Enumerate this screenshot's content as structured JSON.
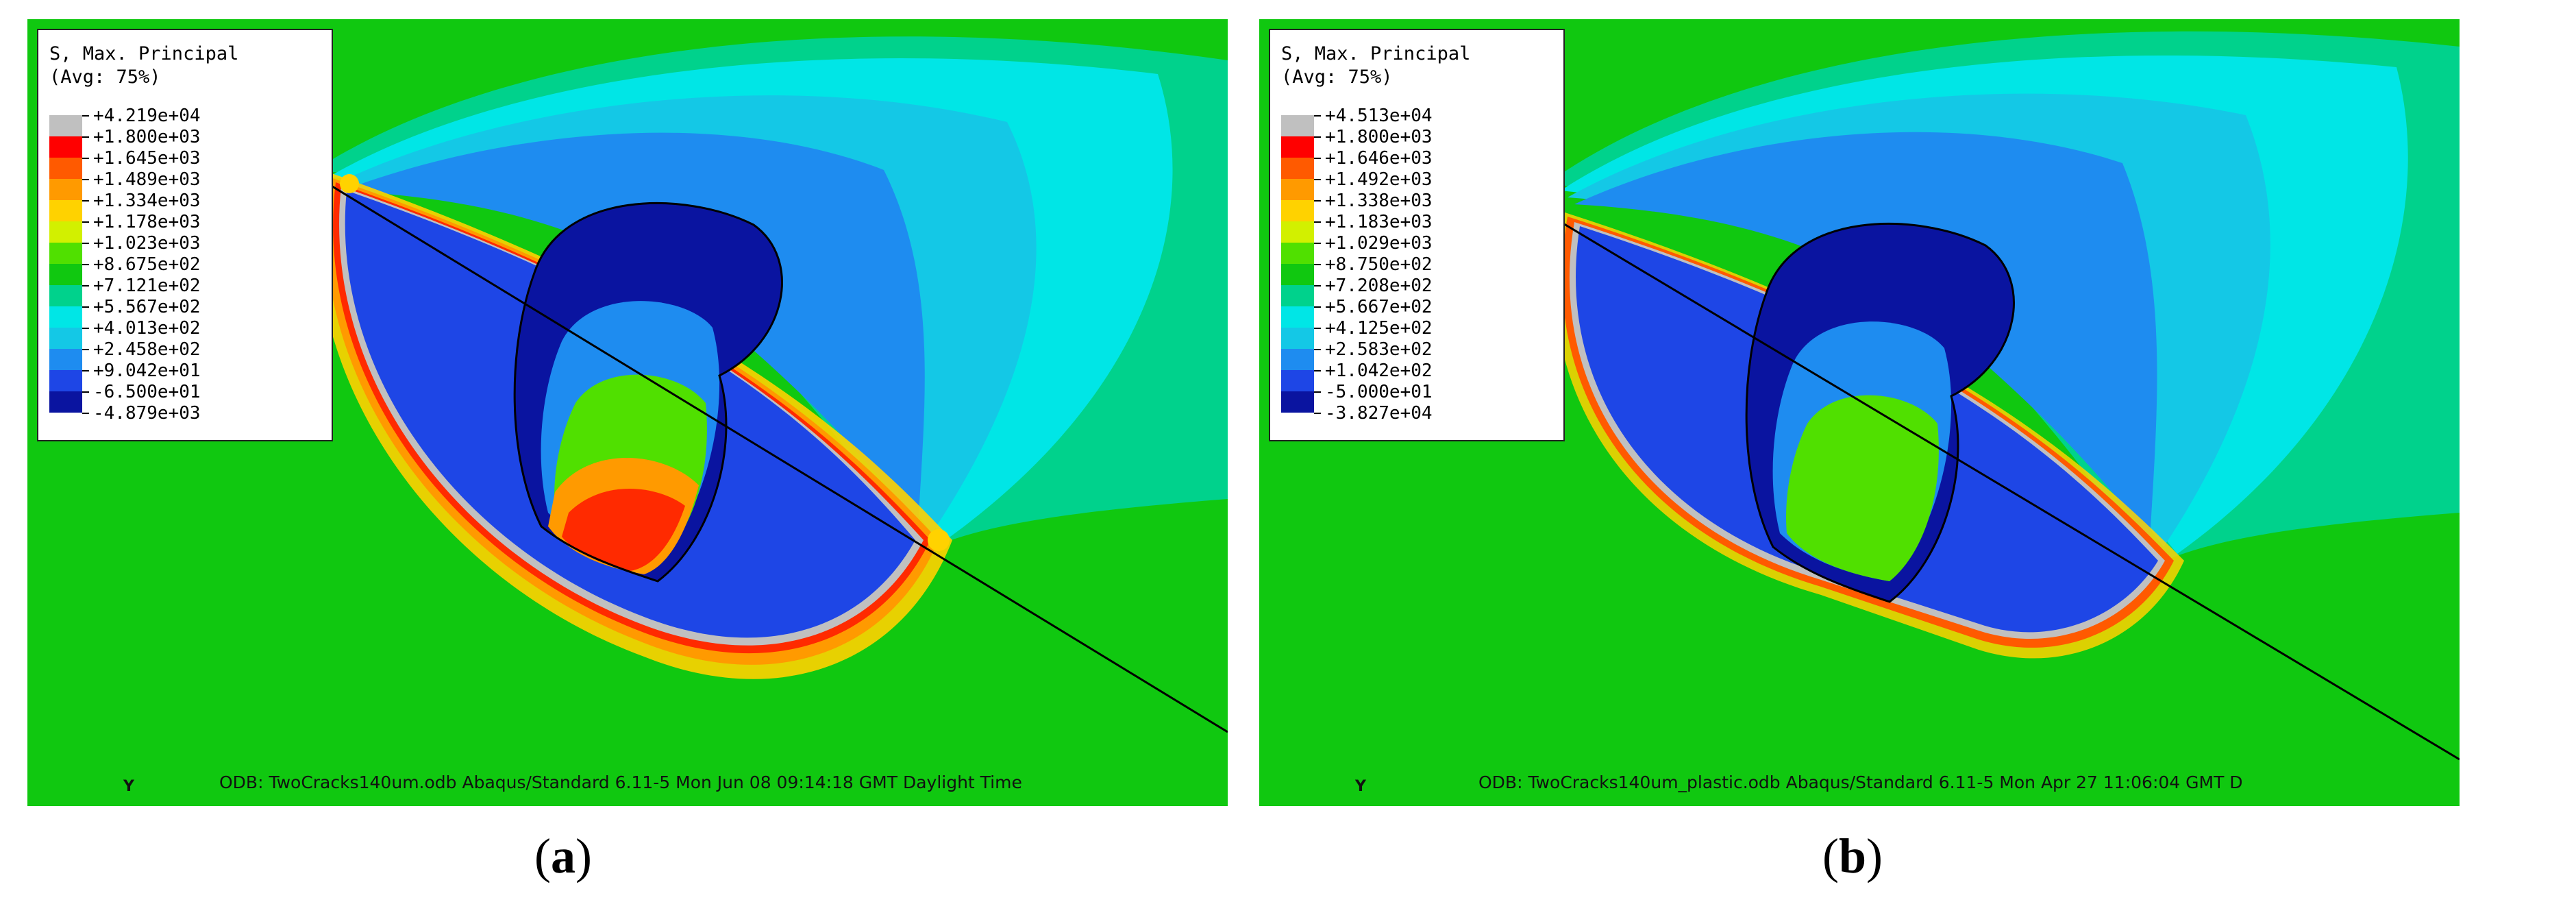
{
  "panels": [
    {
      "legend": {
        "title_line1": "S, Max. Principal",
        "title_line2": "(Avg: 75%)",
        "entries": [
          "+4.219e+04",
          "+1.800e+03",
          "+1.645e+03",
          "+1.489e+03",
          "+1.334e+03",
          "+1.178e+03",
          "+1.023e+03",
          "+8.675e+02",
          "+7.121e+02",
          "+5.567e+02",
          "+4.013e+02",
          "+2.458e+02",
          "+9.042e+01",
          "-6.500e+01",
          "-4.879e+03"
        ],
        "colors": [
          "#c0c0c0",
          "#ff0000",
          "#ff5a00",
          "#ff9a00",
          "#ffd200",
          "#d2f000",
          "#50e000",
          "#10c810",
          "#00d28c",
          "#00e6e6",
          "#14c8e6",
          "#1e8cf0",
          "#1e46e6",
          "#0a14a0",
          "#202020"
        ]
      },
      "axis_label": "Y",
      "footer": "ODB: TwoCracks140um.odb    Abaqus/Standard 6.11-5    Mon Jun 08 09:14:18 GMT Daylight Time",
      "caption_open": "(",
      "caption_letter": "a",
      "caption_close": ")"
    },
    {
      "legend": {
        "title_line1": "S, Max. Principal",
        "title_line2": "(Avg: 75%)",
        "entries": [
          "+4.513e+04",
          "+1.800e+03",
          "+1.646e+03",
          "+1.492e+03",
          "+1.338e+03",
          "+1.183e+03",
          "+1.029e+03",
          "+8.750e+02",
          "+7.208e+02",
          "+5.667e+02",
          "+4.125e+02",
          "+2.583e+02",
          "+1.042e+02",
          "-5.000e+01",
          "-3.827e+04"
        ],
        "colors": [
          "#c0c0c0",
          "#ff0000",
          "#ff5a00",
          "#ff9a00",
          "#ffd200",
          "#d2f000",
          "#50e000",
          "#10c810",
          "#00d28c",
          "#00e6e6",
          "#14c8e6",
          "#1e8cf0",
          "#1e46e6",
          "#0a14a0",
          "#202020"
        ]
      },
      "axis_label": "Y",
      "footer": "ODB: TwoCracks140um_plastic.odb    Abaqus/Standard 6.11-5    Mon Apr 27 11:06:04 GMT D",
      "caption_open": "(",
      "caption_letter": "b",
      "caption_close": ")"
    }
  ]
}
